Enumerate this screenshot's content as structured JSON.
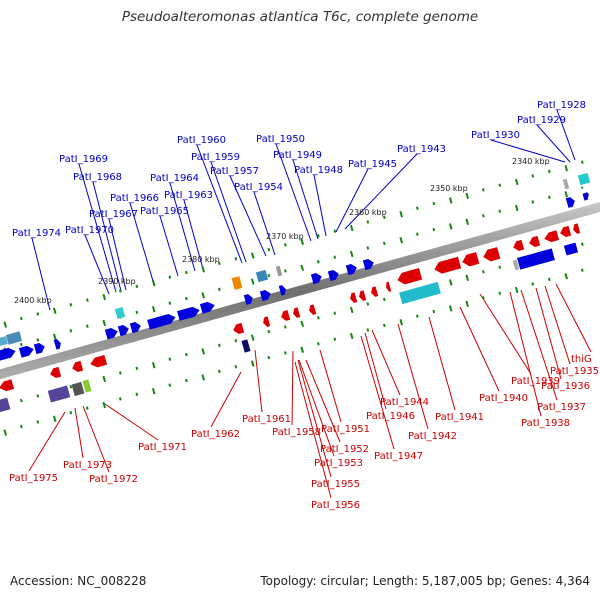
{
  "title": "Pseudoalteromonas atlantica T6c, complete genome",
  "footer": {
    "accession": "Accession: NC_008228",
    "summary": "Topology: circular; Length: 5,187,005 bp; Genes: 4,364"
  },
  "colors": {
    "forward_gene": "#0000dd",
    "reverse_gene": "#dd0000",
    "forward_label": "#0000cc",
    "reverse_label": "#cc0000",
    "backbone": "#888888",
    "tick": "#118811"
  },
  "kbp_markers": [
    "2340 kbp",
    "2350 kbp",
    "2360 kbp",
    "2370 kbp",
    "2380 kbp",
    "2390 kbp",
    "2400 kbp"
  ],
  "forward_labels": [
    "PatI_1928",
    "PatI_1929",
    "PatI_1930",
    "PatI_1943",
    "PatI_1945",
    "PatI_1948",
    "PatI_1949",
    "PatI_1950",
    "PatI_1954",
    "PatI_1957",
    "PatI_1959",
    "PatI_1960",
    "PatI_1963",
    "PatI_1964",
    "PatI_1965",
    "PatI_1966",
    "PatI_1967",
    "PatI_1968",
    "PatI_1969",
    "PatI_1970",
    "PatI_1974"
  ],
  "reverse_labels": [
    "thiG",
    "PatI_1935",
    "PatI_1936",
    "PatI_1937",
    "PatI_1938",
    "PatI_1939",
    "PatI_1940",
    "PatI_1941",
    "PatI_1942",
    "PatI_1944",
    "PatI_1946",
    "PatI_1947",
    "PatI_1951",
    "PatI_1952",
    "PatI_1953",
    "PatI_1955",
    "PatI_1956",
    "PatI_1958",
    "PatI_1961",
    "PatI_1962",
    "PatI_1971",
    "PatI_1972",
    "PatI_1973",
    "PatI_1975"
  ]
}
